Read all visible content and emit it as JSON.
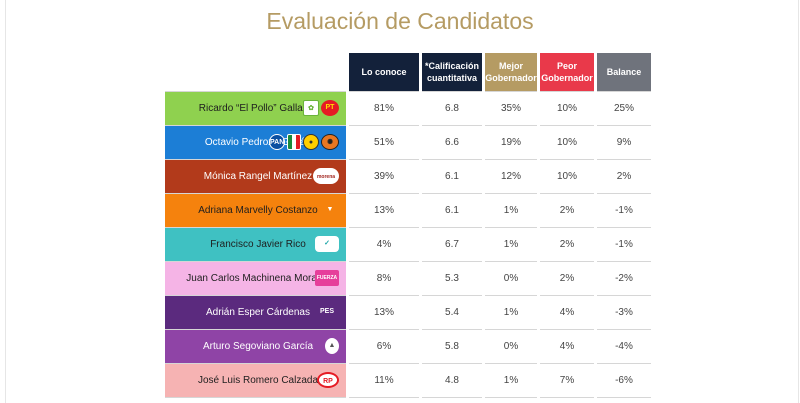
{
  "title": "Evaluación de Candidatos",
  "headers": [
    {
      "label": "Lo conoce",
      "color": "#13213a"
    },
    {
      "label": "*Calificación cuantitativa",
      "color": "#13213a"
    },
    {
      "label": "Mejor Gobernador",
      "color": "#b59b63"
    },
    {
      "label": "Peor Gobernador",
      "color": "#e9394a"
    },
    {
      "label": "Balance",
      "color": "#6f737c"
    }
  ],
  "chart_data": {
    "type": "table",
    "title": "Evaluación de Candidatos",
    "columns": [
      "Lo conoce",
      "*Calificación cuantitativa",
      "Mejor Gobernador",
      "Peor Gobernador",
      "Balance"
    ],
    "rows": [
      {
        "name": "Ricardo “El Pollo” Gallardo",
        "color": "#8fd14f",
        "logos": [
          "green-party-logo",
          "pt-logo"
        ],
        "values": [
          "81%",
          "6.8",
          "35%",
          "10%",
          "25%"
        ]
      },
      {
        "name": "Octavio Pedroza Gaitán",
        "color": "#1c7ed6",
        "logos": [
          "pan-logo",
          "pri-logo",
          "prd-logo",
          "local-party-logo"
        ],
        "values": [
          "51%",
          "6.6",
          "19%",
          "10%",
          "9%"
        ]
      },
      {
        "name": "Mónica Rangel Martínez",
        "color": "#b23a1b",
        "logos": [
          "morena-logo"
        ],
        "values": [
          "39%",
          "6.1",
          "12%",
          "10%",
          "2%"
        ]
      },
      {
        "name": "Adriana Marvelly Costanzo",
        "color": "#f5820d",
        "logos": [
          "mc-logo"
        ],
        "values": [
          "13%",
          "6.1",
          "1%",
          "2%",
          "-1%"
        ]
      },
      {
        "name": "Francisco Javier Rico",
        "color": "#3fc1c2",
        "logos": [
          "nueva-alianza-logo"
        ],
        "values": [
          "4%",
          "6.7",
          "1%",
          "2%",
          "-1%"
        ]
      },
      {
        "name": "Juan Carlos Machinena Morales",
        "color": "#f5b4e6",
        "logos": [
          "fuerza-mexico-logo"
        ],
        "values": [
          "8%",
          "5.3",
          "0%",
          "2%",
          "-2%"
        ]
      },
      {
        "name": "Adrián Esper Cárdenas",
        "color": "#5b2a7e",
        "logos": [
          "pes-logo"
        ],
        "values": [
          "13%",
          "5.4",
          "1%",
          "4%",
          "-3%"
        ]
      },
      {
        "name": "Arturo Segoviano García",
        "color": "#8f44a6",
        "logos": [
          "independent-logo"
        ],
        "values": [
          "6%",
          "5.8",
          "0%",
          "4%",
          "-4%"
        ]
      },
      {
        "name": "José Luis Romero Calzada",
        "color": "#f6b3b3",
        "logos": [
          "rsp-logo"
        ],
        "values": [
          "11%",
          "4.8",
          "1%",
          "7%",
          "-6%"
        ]
      }
    ]
  }
}
